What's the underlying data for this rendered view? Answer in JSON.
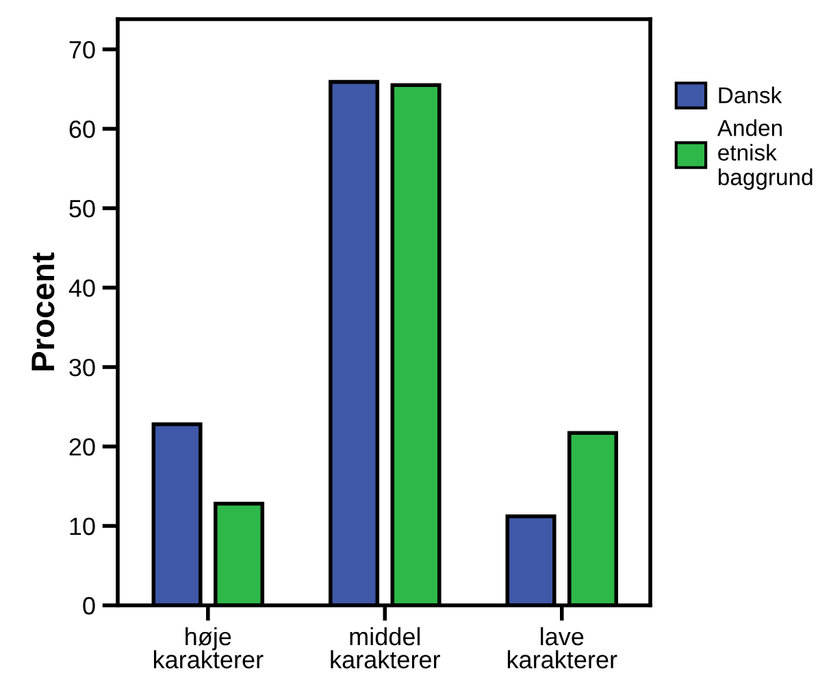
{
  "chart_data": {
    "type": "bar",
    "ylabel": "Procent",
    "categories": [
      "høje\nkarakterer",
      "middel\nkarakterer",
      "lave\nkarakterer"
    ],
    "series": [
      {
        "name": "Dansk",
        "color": "#3f58a8",
        "values": [
          22.8,
          65.9,
          11.2
        ]
      },
      {
        "name": "Anden\netnisk\nbaggrund",
        "color": "#2fb84a",
        "values": [
          12.8,
          65.5,
          21.7
        ]
      }
    ],
    "ylim": [
      0,
      73.8
    ],
    "yticks": [
      0,
      10,
      20,
      30,
      40,
      50,
      60,
      70
    ],
    "grid": false,
    "legend": "right"
  }
}
